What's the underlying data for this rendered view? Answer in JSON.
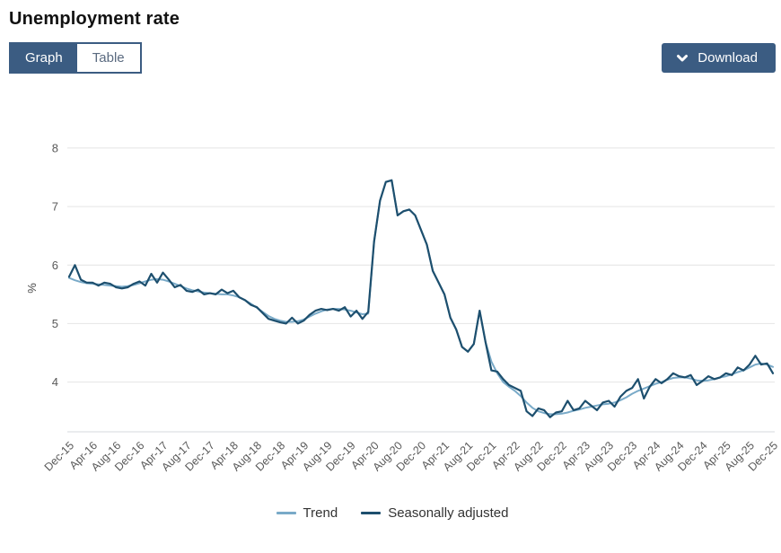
{
  "page": {
    "title": "Unemployment rate"
  },
  "tabs": [
    {
      "label": "Graph",
      "selected": true
    },
    {
      "label": "Table",
      "selected": false
    }
  ],
  "download": {
    "label": "Download",
    "icon": "chevron-down-icon"
  },
  "colors": {
    "brand": "#3b5c82",
    "trend": "#79aac8",
    "seasonally_adjusted": "#1d4f6e",
    "grid": "#e4e4e4",
    "axis_line": "#d6d9dd",
    "axis_text": "#595959",
    "legend_text": "#333333"
  },
  "chart_data": {
    "type": "line",
    "title": "Unemployment rate",
    "xlabel": "",
    "ylabel": "%",
    "x_start": "Dec-15",
    "x_end": "Dec-25",
    "x_interval": "monthly",
    "x_tick_every": 4,
    "x_tick_labels": [
      "Dec-15",
      "Apr-16",
      "Aug-16",
      "Dec-16",
      "Apr-17",
      "Aug-17",
      "Dec-17",
      "Apr-18",
      "Aug-18",
      "Dec-18",
      "Apr-19",
      "Aug-19",
      "Dec-19",
      "Apr-20",
      "Aug-20",
      "Dec-20",
      "Apr-21",
      "Aug-21",
      "Dec-21",
      "Apr-22",
      "Aug-22",
      "Dec-22",
      "Apr-23",
      "Aug-23",
      "Dec-23",
      "Apr-24",
      "Aug-24",
      "Dec-24",
      "Apr-25",
      "Aug-25",
      "Dec-25"
    ],
    "y_ticks": [
      4,
      5,
      6,
      7,
      8
    ],
    "ylim": [
      3.15,
      8.49
    ],
    "grid": "horizontal",
    "legend_position": "bottom",
    "series": [
      {
        "name": "Trend",
        "color": "#79aac8",
        "width": 2,
        "values": [
          5.78,
          5.74,
          5.71,
          5.69,
          5.68,
          5.67,
          5.66,
          5.65,
          5.64,
          5.63,
          5.64,
          5.66,
          5.69,
          5.72,
          5.75,
          5.76,
          5.75,
          5.72,
          5.68,
          5.64,
          5.6,
          5.57,
          5.55,
          5.53,
          5.52,
          5.51,
          5.5,
          5.5,
          5.48,
          5.45,
          5.4,
          5.34,
          5.27,
          5.2,
          5.13,
          5.08,
          5.05,
          5.03,
          5.03,
          5.04,
          5.07,
          5.12,
          5.17,
          5.21,
          5.24,
          5.25,
          5.25,
          5.24,
          5.22,
          5.19,
          5.16,
          5.17,
          6.4,
          7.1,
          7.42,
          7.45,
          6.85,
          6.92,
          6.95,
          6.85,
          6.6,
          6.35,
          5.9,
          5.7,
          5.5,
          5.1,
          4.9,
          4.6,
          4.52,
          4.65,
          5.22,
          4.68,
          4.35,
          4.15,
          4.0,
          3.92,
          3.85,
          3.76,
          3.65,
          3.56,
          3.5,
          3.47,
          3.45,
          3.45,
          3.46,
          3.48,
          3.51,
          3.53,
          3.56,
          3.58,
          3.6,
          3.62,
          3.63,
          3.65,
          3.69,
          3.74,
          3.8,
          3.85,
          3.89,
          3.93,
          3.97,
          4.0,
          4.04,
          4.07,
          4.08,
          4.08,
          4.06,
          4.03,
          4.02,
          4.03,
          4.05,
          4.08,
          4.1,
          4.13,
          4.17,
          4.2,
          4.25,
          4.3,
          4.32,
          4.3,
          4.26
        ]
      },
      {
        "name": "Seasonally adjusted",
        "color": "#1d4f6e",
        "width": 2.2,
        "values": [
          5.8,
          6.0,
          5.75,
          5.7,
          5.7,
          5.65,
          5.7,
          5.68,
          5.62,
          5.6,
          5.62,
          5.68,
          5.72,
          5.65,
          5.85,
          5.7,
          5.87,
          5.75,
          5.62,
          5.66,
          5.56,
          5.54,
          5.58,
          5.5,
          5.52,
          5.5,
          5.58,
          5.52,
          5.56,
          5.45,
          5.4,
          5.32,
          5.28,
          5.18,
          5.08,
          5.05,
          5.02,
          5.0,
          5.1,
          5.0,
          5.05,
          5.15,
          5.22,
          5.25,
          5.23,
          5.25,
          5.22,
          5.28,
          5.12,
          5.22,
          5.08,
          5.2,
          6.4,
          7.1,
          7.42,
          7.45,
          6.85,
          6.92,
          6.95,
          6.85,
          6.6,
          6.35,
          5.9,
          5.7,
          5.5,
          5.1,
          4.9,
          4.6,
          4.52,
          4.65,
          5.22,
          4.68,
          4.2,
          4.18,
          4.05,
          3.95,
          3.9,
          3.85,
          3.5,
          3.42,
          3.55,
          3.52,
          3.4,
          3.48,
          3.5,
          3.68,
          3.52,
          3.55,
          3.68,
          3.6,
          3.52,
          3.65,
          3.68,
          3.58,
          3.75,
          3.85,
          3.9,
          4.05,
          3.72,
          3.92,
          4.05,
          3.98,
          4.05,
          4.15,
          4.1,
          4.08,
          4.12,
          3.95,
          4.02,
          4.1,
          4.05,
          4.08,
          4.15,
          4.12,
          4.25,
          4.2,
          4.3,
          4.45,
          4.3,
          4.32,
          4.15
        ]
      }
    ]
  }
}
